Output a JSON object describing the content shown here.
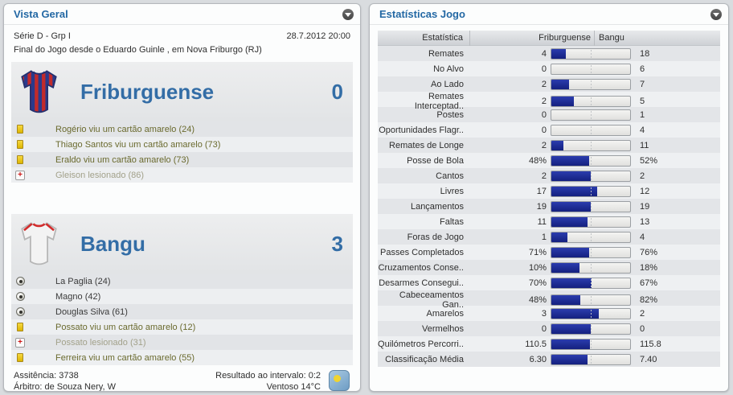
{
  "left_panel": {
    "title": "Vista Geral",
    "competition": "Série D - Grp I",
    "datetime": "28.7.2012 20:00",
    "subtitle": "Final do Jogo desde o Eduardo Guinle , em Nova Friburgo (RJ)",
    "home": {
      "name": "Friburguense",
      "score": "0",
      "events": [
        {
          "icon": "yellow-card",
          "text": "Rogério viu um cartão amarelo (24)"
        },
        {
          "icon": "yellow-card",
          "text": "Thiago Santos viu um cartão amarelo (73)"
        },
        {
          "icon": "yellow-card",
          "text": "Eraldo viu um cartão amarelo (73)"
        },
        {
          "icon": "injury",
          "text": "Gleison lesionado (86)"
        }
      ]
    },
    "away": {
      "name": "Bangu",
      "score": "3",
      "events": [
        {
          "icon": "goal",
          "text": "La Paglia (24)"
        },
        {
          "icon": "goal",
          "text": "Magno (42)"
        },
        {
          "icon": "goal",
          "text": "Douglas Silva (61)"
        },
        {
          "icon": "yellow-card",
          "text": "Possato viu um cartão amarelo (12)"
        },
        {
          "icon": "injury",
          "text": "Possato lesionado (31)"
        },
        {
          "icon": "yellow-card",
          "text": "Ferreira viu um cartão amarelo (55)"
        }
      ]
    },
    "footer": {
      "attendance": "Assitência: 3738",
      "referee": "Árbitro: de Souza Nery, W",
      "half_time": "Resultado ao intervalo: 0:2",
      "weather": "Ventoso 14°C",
      "weather_icon": "sun-icon"
    }
  },
  "right_panel": {
    "title": "Estatísticas Jogo",
    "columns": [
      "Estatística",
      "Friburguense",
      "Bangu"
    ],
    "stats": [
      {
        "label": "Remates",
        "home": "4",
        "away": "18"
      },
      {
        "label": "No Alvo",
        "home": "0",
        "away": "6"
      },
      {
        "label": "Ao Lado",
        "home": "2",
        "away": "7"
      },
      {
        "label": "Remates Interceptad..",
        "home": "2",
        "away": "5"
      },
      {
        "label": "Postes",
        "home": "0",
        "away": "1"
      },
      {
        "label": "Oportunidades Flagr..",
        "home": "0",
        "away": "4"
      },
      {
        "label": "Remates de Longe",
        "home": "2",
        "away": "11"
      },
      {
        "label": "Posse de Bola",
        "home": "48%",
        "away": "52%"
      },
      {
        "label": "Cantos",
        "home": "2",
        "away": "2"
      },
      {
        "label": "Livres",
        "home": "17",
        "away": "12"
      },
      {
        "label": "Lançamentos",
        "home": "19",
        "away": "19"
      },
      {
        "label": "Faltas",
        "home": "11",
        "away": "13"
      },
      {
        "label": "Foras de Jogo",
        "home": "1",
        "away": "4"
      },
      {
        "label": "Passes Completados",
        "home": "71%",
        "away": "76%"
      },
      {
        "label": "Cruzamentos Conse..",
        "home": "10%",
        "away": "18%"
      },
      {
        "label": "Desarmes Consegui..",
        "home": "70%",
        "away": "67%"
      },
      {
        "label": "Cabeceamentos Gan..",
        "home": "48%",
        "away": "82%"
      },
      {
        "label": "Amarelos",
        "home": "3",
        "away": "2"
      },
      {
        "label": "Vermelhos",
        "home": "0",
        "away": "0"
      },
      {
        "label": "Quilómetros Percorri..",
        "home": "110.5",
        "away": "115.8"
      },
      {
        "label": "Classificação Média",
        "home": "6.30",
        "away": "7.40"
      }
    ],
    "bar_color": "#1c2d9c"
  }
}
